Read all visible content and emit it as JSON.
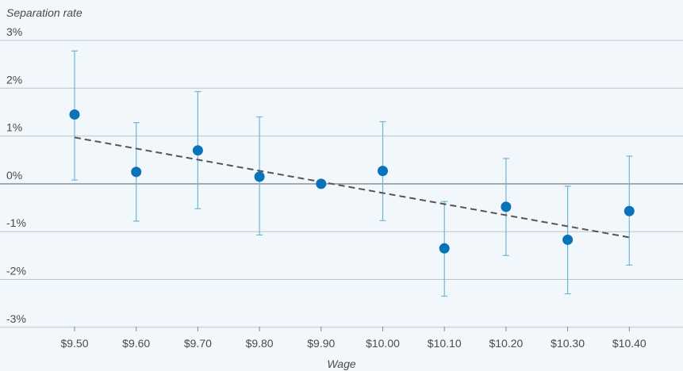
{
  "chart_data": {
    "type": "scatter",
    "ylabel": "Separation rate",
    "xlabel": "Wage",
    "categories": [
      "$9.50",
      "$9.60",
      "$9.70",
      "$9.80",
      "$9.90",
      "$10.00",
      "$10.10",
      "$10.20",
      "$10.30",
      "$10.40"
    ],
    "y_ticks": [
      "3%",
      "2%",
      "1%",
      "0%",
      "-1%",
      "-2%",
      "-3%"
    ],
    "ylim": [
      -3,
      3
    ],
    "series": [
      {
        "values": [
          1.45,
          0.25,
          0.7,
          0.15,
          0.0,
          0.27,
          -1.35,
          -0.48,
          -1.17,
          -0.57
        ],
        "error_upper": [
          2.78,
          1.28,
          1.93,
          1.4,
          null,
          1.3,
          -0.37,
          0.53,
          -0.05,
          0.58
        ],
        "error_lower": [
          0.08,
          -0.78,
          -0.52,
          -1.07,
          null,
          -0.77,
          -2.35,
          -1.5,
          -2.3,
          -1.7
        ]
      }
    ],
    "trendline": {
      "start": [
        9.5,
        0.97
      ],
      "end": [
        10.4,
        -1.12
      ],
      "style": "dashed"
    },
    "grid": true,
    "colors": {
      "point": "#0a72b8",
      "error_bar": "#6fb6d6",
      "trendline": "#555555",
      "grid": "#b9c3cc",
      "zero_line": "#7f8a93",
      "background": "#f2f7fb"
    }
  }
}
